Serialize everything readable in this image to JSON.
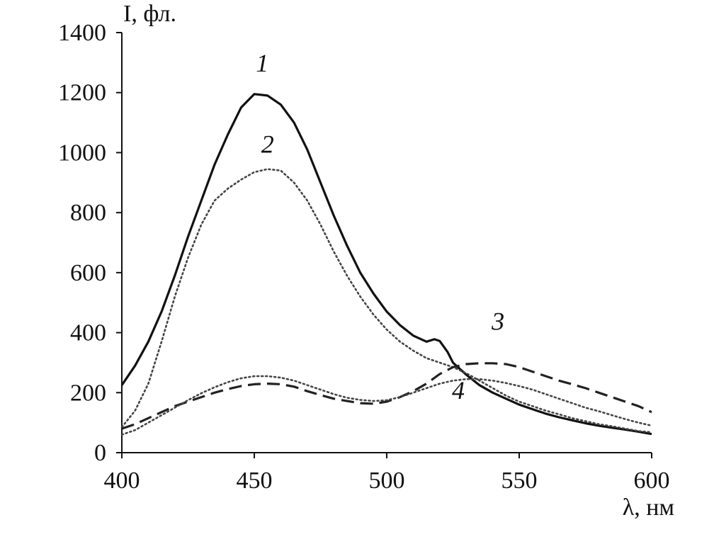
{
  "chart_data": {
    "type": "line",
    "ylabel": "I, фл.",
    "xlabel": "λ, нм",
    "xlim": [
      400,
      600
    ],
    "ylim": [
      0,
      1400
    ],
    "x_ticks": [
      "400",
      "450",
      "500",
      "550",
      "600"
    ],
    "y_ticks": [
      "0",
      "200",
      "400",
      "600",
      "800",
      "1000",
      "1200",
      "1400"
    ],
    "grid": false,
    "legend": "none",
    "series": [
      {
        "name": "1",
        "style": "solid",
        "color": "#111111",
        "points": [
          [
            400,
            225
          ],
          [
            405,
            290
          ],
          [
            410,
            370
          ],
          [
            415,
            470
          ],
          [
            420,
            590
          ],
          [
            425,
            720
          ],
          [
            430,
            840
          ],
          [
            435,
            960
          ],
          [
            440,
            1060
          ],
          [
            445,
            1150
          ],
          [
            450,
            1195
          ],
          [
            455,
            1190
          ],
          [
            460,
            1160
          ],
          [
            465,
            1100
          ],
          [
            470,
            1010
          ],
          [
            475,
            900
          ],
          [
            480,
            790
          ],
          [
            485,
            690
          ],
          [
            490,
            600
          ],
          [
            495,
            530
          ],
          [
            500,
            470
          ],
          [
            505,
            425
          ],
          [
            510,
            390
          ],
          [
            515,
            370
          ],
          [
            518,
            378
          ],
          [
            520,
            372
          ],
          [
            523,
            335
          ],
          [
            525,
            300
          ],
          [
            530,
            260
          ],
          [
            535,
            225
          ],
          [
            540,
            200
          ],
          [
            545,
            180
          ],
          [
            550,
            160
          ],
          [
            555,
            145
          ],
          [
            560,
            130
          ],
          [
            565,
            118
          ],
          [
            570,
            108
          ],
          [
            575,
            98
          ],
          [
            580,
            90
          ],
          [
            585,
            83
          ],
          [
            590,
            77
          ],
          [
            595,
            70
          ],
          [
            600,
            62
          ]
        ]
      },
      {
        "name": "2",
        "style": "dotted",
        "color": "#444444",
        "points": [
          [
            400,
            85
          ],
          [
            405,
            140
          ],
          [
            410,
            230
          ],
          [
            415,
            370
          ],
          [
            420,
            520
          ],
          [
            425,
            650
          ],
          [
            430,
            760
          ],
          [
            435,
            840
          ],
          [
            440,
            880
          ],
          [
            445,
            910
          ],
          [
            450,
            935
          ],
          [
            455,
            945
          ],
          [
            460,
            940
          ],
          [
            465,
            900
          ],
          [
            470,
            840
          ],
          [
            475,
            760
          ],
          [
            480,
            670
          ],
          [
            485,
            590
          ],
          [
            490,
            520
          ],
          [
            495,
            460
          ],
          [
            500,
            410
          ],
          [
            505,
            370
          ],
          [
            510,
            340
          ],
          [
            515,
            315
          ],
          [
            520,
            300
          ],
          [
            525,
            285
          ],
          [
            530,
            265
          ],
          [
            535,
            240
          ],
          [
            540,
            215
          ],
          [
            545,
            190
          ],
          [
            550,
            170
          ],
          [
            555,
            155
          ],
          [
            560,
            140
          ],
          [
            565,
            128
          ],
          [
            570,
            115
          ],
          [
            575,
            105
          ],
          [
            580,
            95
          ],
          [
            585,
            88
          ],
          [
            590,
            80
          ],
          [
            595,
            72
          ],
          [
            600,
            68
          ]
        ]
      },
      {
        "name": "3",
        "style": "dashed",
        "color": "#222222",
        "points": [
          [
            400,
            80
          ],
          [
            405,
            95
          ],
          [
            410,
            115
          ],
          [
            415,
            135
          ],
          [
            420,
            155
          ],
          [
            425,
            170
          ],
          [
            430,
            185
          ],
          [
            435,
            200
          ],
          [
            440,
            212
          ],
          [
            445,
            222
          ],
          [
            450,
            228
          ],
          [
            455,
            230
          ],
          [
            460,
            228
          ],
          [
            465,
            220
          ],
          [
            470,
            205
          ],
          [
            475,
            192
          ],
          [
            480,
            180
          ],
          [
            485,
            172
          ],
          [
            490,
            165
          ],
          [
            495,
            163
          ],
          [
            500,
            170
          ],
          [
            505,
            185
          ],
          [
            510,
            205
          ],
          [
            515,
            230
          ],
          [
            520,
            262
          ],
          [
            525,
            285
          ],
          [
            530,
            295
          ],
          [
            535,
            298
          ],
          [
            540,
            298
          ],
          [
            545,
            295
          ],
          [
            550,
            285
          ],
          [
            555,
            270
          ],
          [
            560,
            255
          ],
          [
            565,
            240
          ],
          [
            570,
            228
          ],
          [
            575,
            215
          ],
          [
            580,
            200
          ],
          [
            585,
            185
          ],
          [
            590,
            170
          ],
          [
            595,
            155
          ],
          [
            600,
            135
          ]
        ]
      },
      {
        "name": "4",
        "style": "dotted",
        "color": "#444444",
        "points": [
          [
            400,
            60
          ],
          [
            405,
            75
          ],
          [
            410,
            100
          ],
          [
            415,
            125
          ],
          [
            420,
            150
          ],
          [
            425,
            175
          ],
          [
            430,
            198
          ],
          [
            435,
            218
          ],
          [
            440,
            235
          ],
          [
            445,
            248
          ],
          [
            450,
            255
          ],
          [
            455,
            255
          ],
          [
            460,
            250
          ],
          [
            465,
            240
          ],
          [
            470,
            225
          ],
          [
            475,
            210
          ],
          [
            480,
            195
          ],
          [
            485,
            183
          ],
          [
            490,
            176
          ],
          [
            495,
            172
          ],
          [
            500,
            175
          ],
          [
            505,
            185
          ],
          [
            510,
            200
          ],
          [
            515,
            215
          ],
          [
            520,
            230
          ],
          [
            525,
            240
          ],
          [
            530,
            245
          ],
          [
            535,
            245
          ],
          [
            540,
            240
          ],
          [
            545,
            232
          ],
          [
            550,
            222
          ],
          [
            555,
            210
          ],
          [
            560,
            195
          ],
          [
            565,
            180
          ],
          [
            570,
            165
          ],
          [
            575,
            150
          ],
          [
            580,
            138
          ],
          [
            585,
            125
          ],
          [
            590,
            112
          ],
          [
            595,
            100
          ],
          [
            600,
            90
          ]
        ]
      }
    ],
    "curve_labels": [
      {
        "text": "1",
        "x": 453,
        "y": 1270
      },
      {
        "text": "2",
        "x": 455,
        "y": 1000
      },
      {
        "text": "3",
        "x": 542,
        "y": 410
      },
      {
        "text": "4",
        "x": 527,
        "y": 180
      }
    ]
  }
}
